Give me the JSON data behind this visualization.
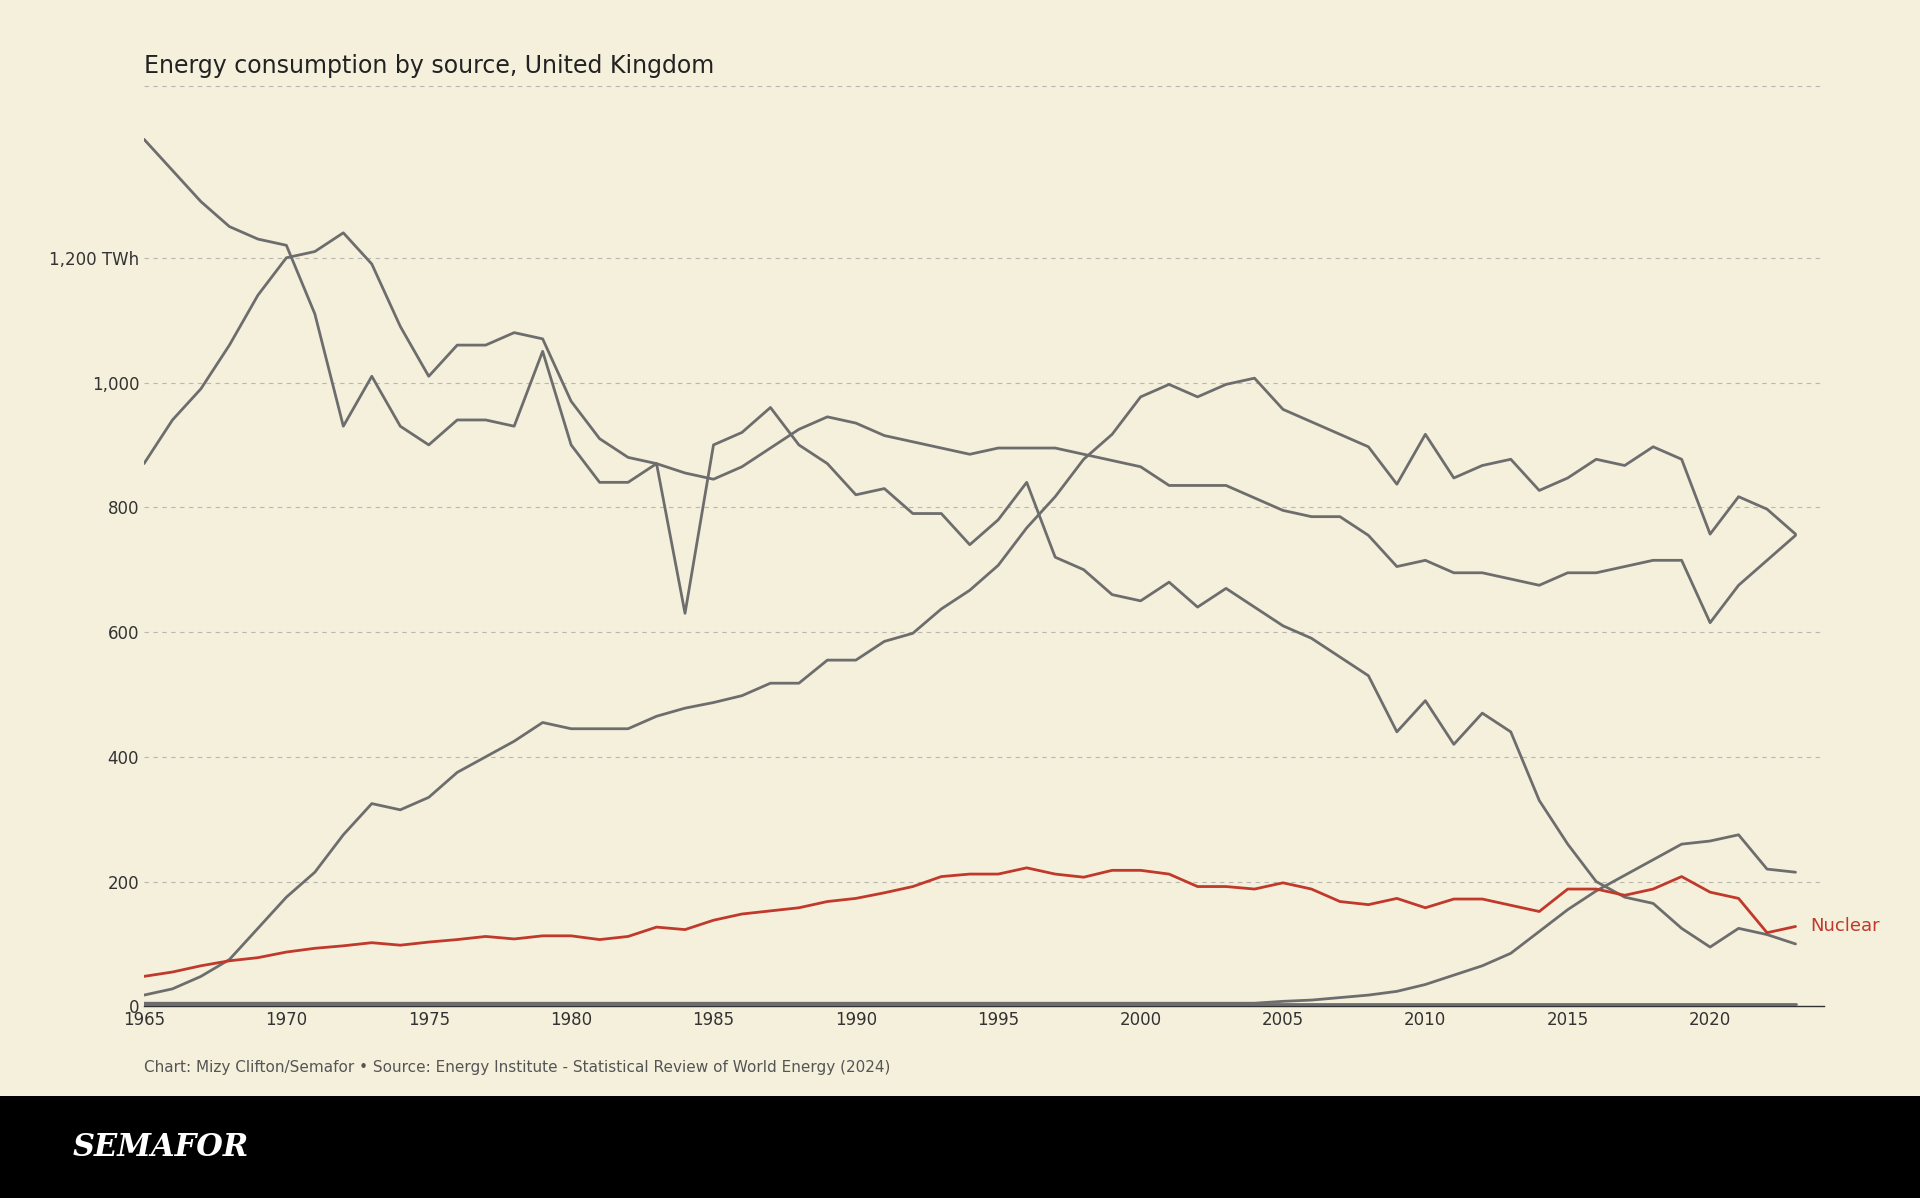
{
  "title": "Energy consumption by source, United Kingdom",
  "background_color": "#f5f0dc",
  "grid_color": "#999999",
  "footer_text": "Chart: Mizy Clifton/Semafor • Source: Energy Institute - Statistical Review of World Energy (2024)",
  "semafor_text": "SEMAFOR",
  "nuclear_label": "Nuclear",
  "ylim": [
    0,
    1450
  ],
  "yticks": [
    0,
    200,
    400,
    600,
    800,
    1000,
    1200
  ],
  "ytick_labels": [
    "0",
    "200",
    "400",
    "600",
    "800",
    "1,000",
    "1,200 TWh"
  ],
  "xlim": [
    1965,
    2024
  ],
  "xticks": [
    1965,
    1970,
    1975,
    1980,
    1985,
    1990,
    1995,
    2000,
    2005,
    2010,
    2015,
    2020
  ],
  "coal": {
    "years": [
      1965,
      1966,
      1967,
      1968,
      1969,
      1970,
      1971,
      1972,
      1973,
      1974,
      1975,
      1976,
      1977,
      1978,
      1979,
      1980,
      1981,
      1982,
      1983,
      1984,
      1985,
      1986,
      1987,
      1988,
      1989,
      1990,
      1991,
      1992,
      1993,
      1994,
      1995,
      1996,
      1997,
      1998,
      1999,
      2000,
      2001,
      2002,
      2003,
      2004,
      2005,
      2006,
      2007,
      2008,
      2009,
      2010,
      2011,
      2012,
      2013,
      2014,
      2015,
      2016,
      2017,
      2018,
      2019,
      2020,
      2021,
      2022,
      2023
    ],
    "values": [
      1390,
      1340,
      1290,
      1250,
      1230,
      1220,
      1110,
      930,
      1010,
      930,
      900,
      940,
      940,
      930,
      1050,
      900,
      840,
      840,
      870,
      630,
      900,
      920,
      960,
      900,
      870,
      820,
      830,
      790,
      790,
      740,
      780,
      840,
      720,
      700,
      660,
      650,
      680,
      640,
      670,
      640,
      610,
      590,
      560,
      530,
      440,
      490,
      420,
      470,
      440,
      330,
      260,
      200,
      175,
      165,
      125,
      95,
      125,
      115,
      100
    ]
  },
  "oil": {
    "years": [
      1965,
      1966,
      1967,
      1968,
      1969,
      1970,
      1971,
      1972,
      1973,
      1974,
      1975,
      1976,
      1977,
      1978,
      1979,
      1980,
      1981,
      1982,
      1983,
      1984,
      1985,
      1986,
      1987,
      1988,
      1989,
      1990,
      1991,
      1992,
      1993,
      1994,
      1995,
      1996,
      1997,
      1998,
      1999,
      2000,
      2001,
      2002,
      2003,
      2004,
      2005,
      2006,
      2007,
      2008,
      2009,
      2010,
      2011,
      2012,
      2013,
      2014,
      2015,
      2016,
      2017,
      2018,
      2019,
      2020,
      2021,
      2022,
      2023
    ],
    "values": [
      870,
      940,
      990,
      1060,
      1140,
      1200,
      1210,
      1240,
      1190,
      1090,
      1010,
      1060,
      1060,
      1080,
      1070,
      970,
      910,
      880,
      870,
      855,
      845,
      865,
      895,
      925,
      945,
      935,
      915,
      905,
      895,
      885,
      895,
      895,
      895,
      885,
      875,
      865,
      835,
      835,
      835,
      815,
      795,
      785,
      785,
      755,
      705,
      715,
      695,
      695,
      685,
      675,
      695,
      695,
      705,
      715,
      715,
      615,
      675,
      715,
      755
    ]
  },
  "gas": {
    "years": [
      1965,
      1966,
      1967,
      1968,
      1969,
      1970,
      1971,
      1972,
      1973,
      1974,
      1975,
      1976,
      1977,
      1978,
      1979,
      1980,
      1981,
      1982,
      1983,
      1984,
      1985,
      1986,
      1987,
      1988,
      1989,
      1990,
      1991,
      1992,
      1993,
      1994,
      1995,
      1996,
      1997,
      1998,
      1999,
      2000,
      2001,
      2002,
      2003,
      2004,
      2005,
      2006,
      2007,
      2008,
      2009,
      2010,
      2011,
      2012,
      2013,
      2014,
      2015,
      2016,
      2017,
      2018,
      2019,
      2020,
      2021,
      2022,
      2023
    ],
    "values": [
      18,
      28,
      48,
      75,
      125,
      175,
      215,
      275,
      325,
      315,
      335,
      375,
      400,
      425,
      455,
      445,
      445,
      445,
      465,
      478,
      487,
      498,
      518,
      518,
      555,
      555,
      585,
      598,
      637,
      667,
      707,
      767,
      817,
      877,
      917,
      977,
      997,
      977,
      997,
      1007,
      957,
      937,
      917,
      897,
      837,
      917,
      847,
      867,
      877,
      827,
      847,
      877,
      867,
      897,
      877,
      757,
      817,
      797,
      757
    ]
  },
  "nuclear": {
    "years": [
      1965,
      1966,
      1967,
      1968,
      1969,
      1970,
      1971,
      1972,
      1973,
      1974,
      1975,
      1976,
      1977,
      1978,
      1979,
      1980,
      1981,
      1982,
      1983,
      1984,
      1985,
      1986,
      1987,
      1988,
      1989,
      1990,
      1991,
      1992,
      1993,
      1994,
      1995,
      1996,
      1997,
      1998,
      1999,
      2000,
      2001,
      2002,
      2003,
      2004,
      2005,
      2006,
      2007,
      2008,
      2009,
      2010,
      2011,
      2012,
      2013,
      2014,
      2015,
      2016,
      2017,
      2018,
      2019,
      2020,
      2021,
      2022,
      2023
    ],
    "values": [
      48,
      55,
      65,
      73,
      78,
      87,
      93,
      97,
      102,
      98,
      103,
      107,
      112,
      108,
      113,
      113,
      107,
      112,
      127,
      123,
      138,
      148,
      153,
      158,
      168,
      173,
      182,
      192,
      208,
      212,
      212,
      222,
      212,
      207,
      218,
      218,
      212,
      192,
      192,
      188,
      198,
      188,
      168,
      163,
      173,
      158,
      172,
      172,
      162,
      152,
      188,
      188,
      178,
      188,
      208,
      183,
      173,
      118,
      128
    ]
  },
  "renewables": {
    "years": [
      1965,
      1966,
      1967,
      1968,
      1969,
      1970,
      1971,
      1972,
      1973,
      1974,
      1975,
      1976,
      1977,
      1978,
      1979,
      1980,
      1981,
      1982,
      1983,
      1984,
      1985,
      1986,
      1987,
      1988,
      1989,
      1990,
      1991,
      1992,
      1993,
      1994,
      1995,
      1996,
      1997,
      1998,
      1999,
      2000,
      2001,
      2002,
      2003,
      2004,
      2005,
      2006,
      2007,
      2008,
      2009,
      2010,
      2011,
      2012,
      2013,
      2014,
      2015,
      2016,
      2017,
      2018,
      2019,
      2020,
      2021,
      2022,
      2023
    ],
    "values": [
      5,
      5,
      5,
      5,
      5,
      5,
      5,
      5,
      5,
      5,
      5,
      5,
      5,
      5,
      5,
      5,
      5,
      5,
      5,
      5,
      5,
      5,
      5,
      5,
      5,
      5,
      5,
      5,
      5,
      5,
      5,
      5,
      5,
      5,
      5,
      5,
      5,
      5,
      5,
      5,
      8,
      10,
      14,
      18,
      24,
      35,
      50,
      65,
      85,
      120,
      155,
      185,
      210,
      235,
      260,
      265,
      275,
      220,
      215
    ]
  },
  "other": {
    "years": [
      1965,
      1966,
      1967,
      1968,
      1969,
      1970,
      1971,
      1972,
      1973,
      1974,
      1975,
      1976,
      1977,
      1978,
      1979,
      1980,
      1981,
      1982,
      1983,
      1984,
      1985,
      1986,
      1987,
      1988,
      1989,
      1990,
      1991,
      1992,
      1993,
      1994,
      1995,
      1996,
      1997,
      1998,
      1999,
      2000,
      2001,
      2002,
      2003,
      2004,
      2005,
      2006,
      2007,
      2008,
      2009,
      2010,
      2011,
      2012,
      2013,
      2014,
      2015,
      2016,
      2017,
      2018,
      2019,
      2020,
      2021,
      2022,
      2023
    ],
    "values": [
      3,
      3,
      3,
      3,
      3,
      3,
      3,
      3,
      3,
      3,
      3,
      3,
      3,
      3,
      3,
      3,
      3,
      3,
      3,
      3,
      3,
      3,
      3,
      3,
      3,
      3,
      3,
      3,
      3,
      3,
      3,
      3,
      3,
      3,
      3,
      3,
      3,
      3,
      3,
      3,
      3,
      3,
      3,
      3,
      3,
      3,
      3,
      3,
      3,
      3,
      3,
      3,
      3,
      3,
      3,
      3,
      3,
      3,
      3
    ]
  },
  "line_color_gray": "#6d6d6d",
  "line_color_nuclear": "#c0392b",
  "line_width": 2.0,
  "title_fontsize": 17,
  "axis_fontsize": 12,
  "footer_fontsize": 11,
  "label_fontsize": 13
}
